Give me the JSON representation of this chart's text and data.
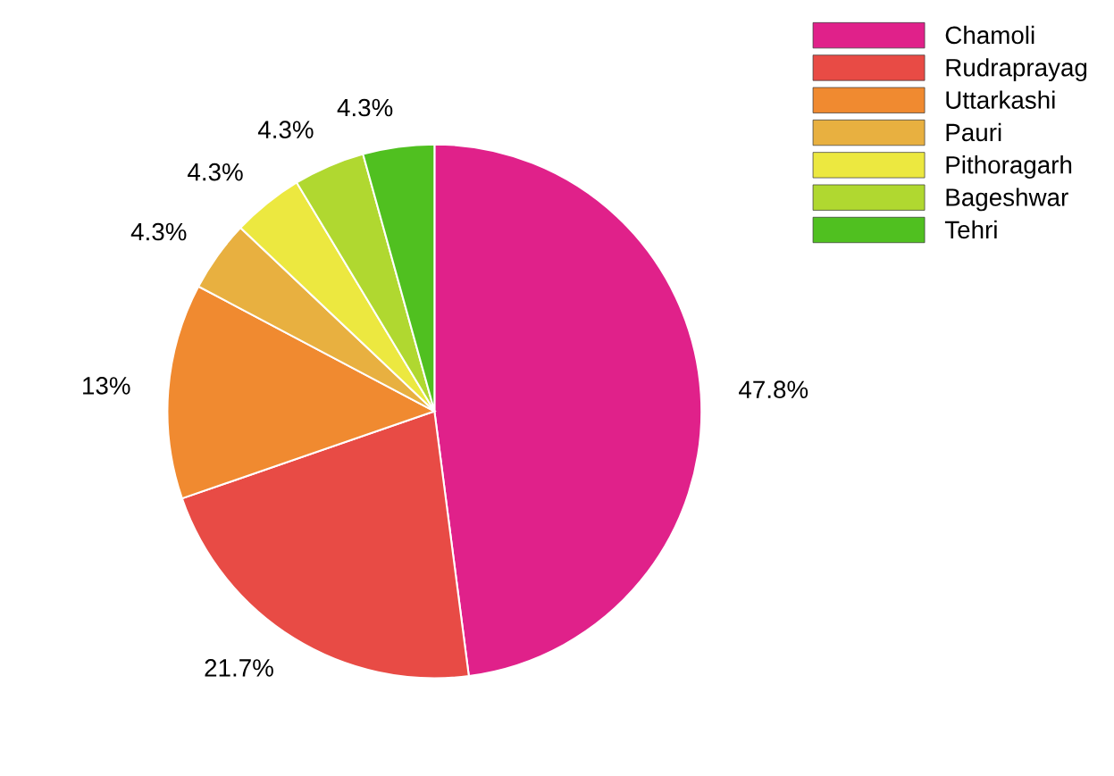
{
  "chart_data": {
    "type": "pie",
    "categories": [
      "Chamoli",
      "Rudraprayag",
      "Uttarkashi",
      "Pauri",
      "Pithoragarh",
      "Bageshwar",
      "Tehri"
    ],
    "values": [
      47.8,
      21.7,
      13,
      4.3,
      4.3,
      4.3,
      4.3
    ],
    "colors": [
      "#e0218a",
      "#e84b45",
      "#f08a30",
      "#e8b040",
      "#ece840",
      "#b0d830",
      "#50c020"
    ],
    "value_labels": [
      "47.8%",
      "21.7%",
      "13%",
      "4.3%",
      "4.3%",
      "4.3%",
      "4.3%"
    ],
    "legend": "top right"
  }
}
